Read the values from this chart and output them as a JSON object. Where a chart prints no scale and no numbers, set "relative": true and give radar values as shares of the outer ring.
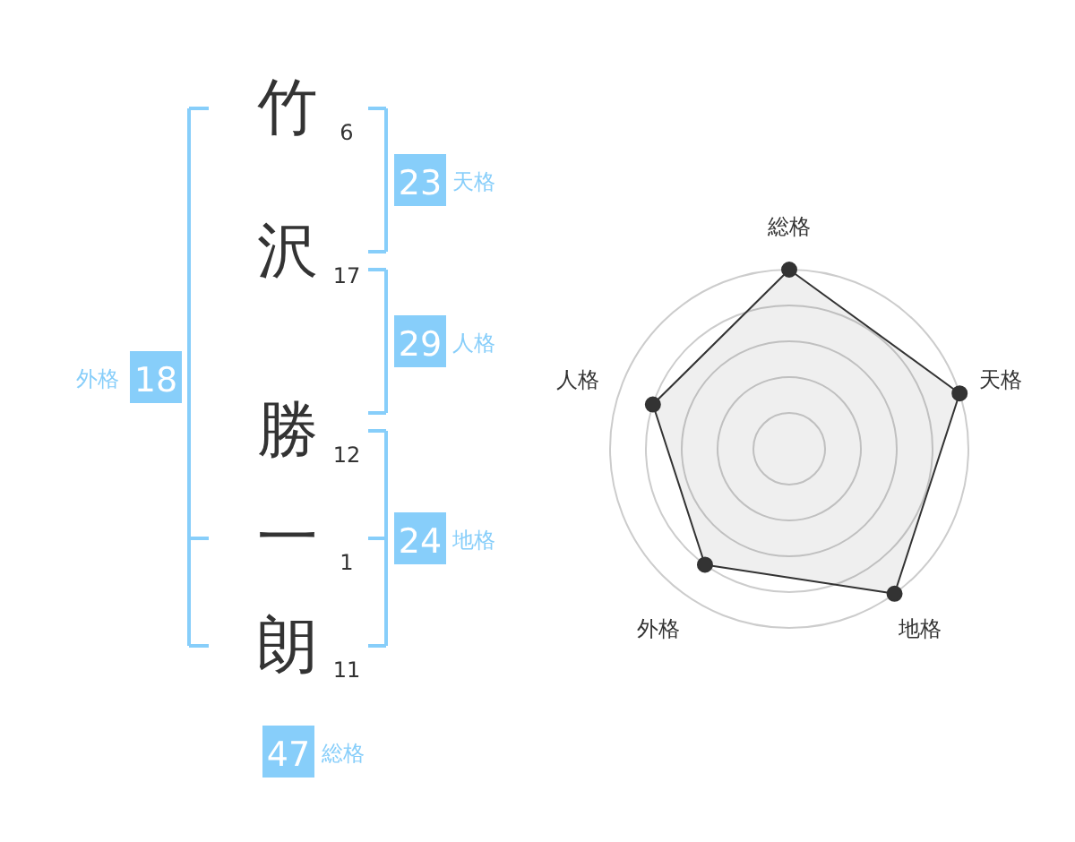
{
  "chart_data": [
    {
      "type": "other",
      "categories": [
        "竹",
        "沢",
        "勝",
        "一",
        "朗"
      ],
      "values": [
        6,
        17,
        12,
        1,
        11
      ],
      "data_labels": true,
      "color": "#87cefa",
      "annotations": [
        "23",
        "天格",
        "29",
        "人格",
        "24",
        "地格",
        "18",
        "外格",
        "47",
        "総格"
      ]
    },
    {
      "type": "radar",
      "categories": [
        "総格",
        "天格",
        "地格",
        "外格",
        "人格"
      ],
      "relative": true,
      "grid": true,
      "marker": "circle",
      "series": [
        {
          "color": "#333333",
          "values": [
            1,
            1,
            1,
            0.8,
            0.8
          ]
        }
      ]
    }
  ]
}
